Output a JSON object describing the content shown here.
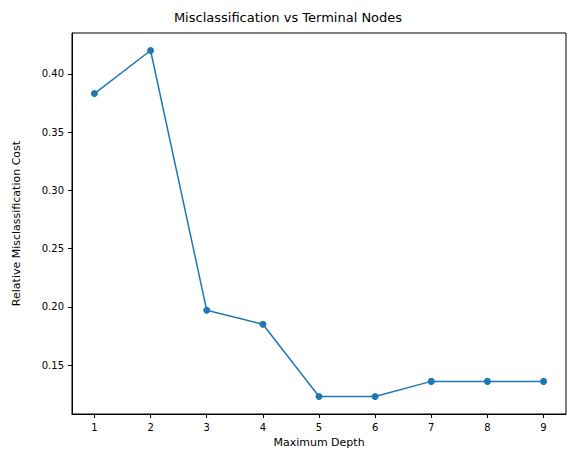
{
  "chart_data": {
    "type": "line",
    "title": "Misclassification vs Terminal Nodes",
    "x_label": "Maximum Depth",
    "y_label": "Relative Misclassification Cost",
    "x": [
      1,
      2,
      3,
      4,
      5,
      6,
      7,
      8,
      9
    ],
    "values": [
      0.383,
      0.42,
      0.197,
      0.185,
      0.123,
      0.123,
      0.136,
      0.136,
      0.136
    ],
    "color": "#1f77b4",
    "marker": "circle",
    "line_style": "solid",
    "xlim": [
      0.6,
      9.4
    ],
    "xticks": [
      1,
      2,
      3,
      4,
      5,
      6,
      7,
      8,
      9
    ],
    "ylim": [
      0.108,
      0.435
    ],
    "yticks": [
      0.15,
      {
        "value": 0.2,
        "label": "0.20"
      },
      0.25,
      {
        "value": 0.3,
        "label": "0.30"
      },
      0.35,
      {
        "value": 0.4,
        "label": "0.40"
      }
    ],
    "grid": false
  }
}
